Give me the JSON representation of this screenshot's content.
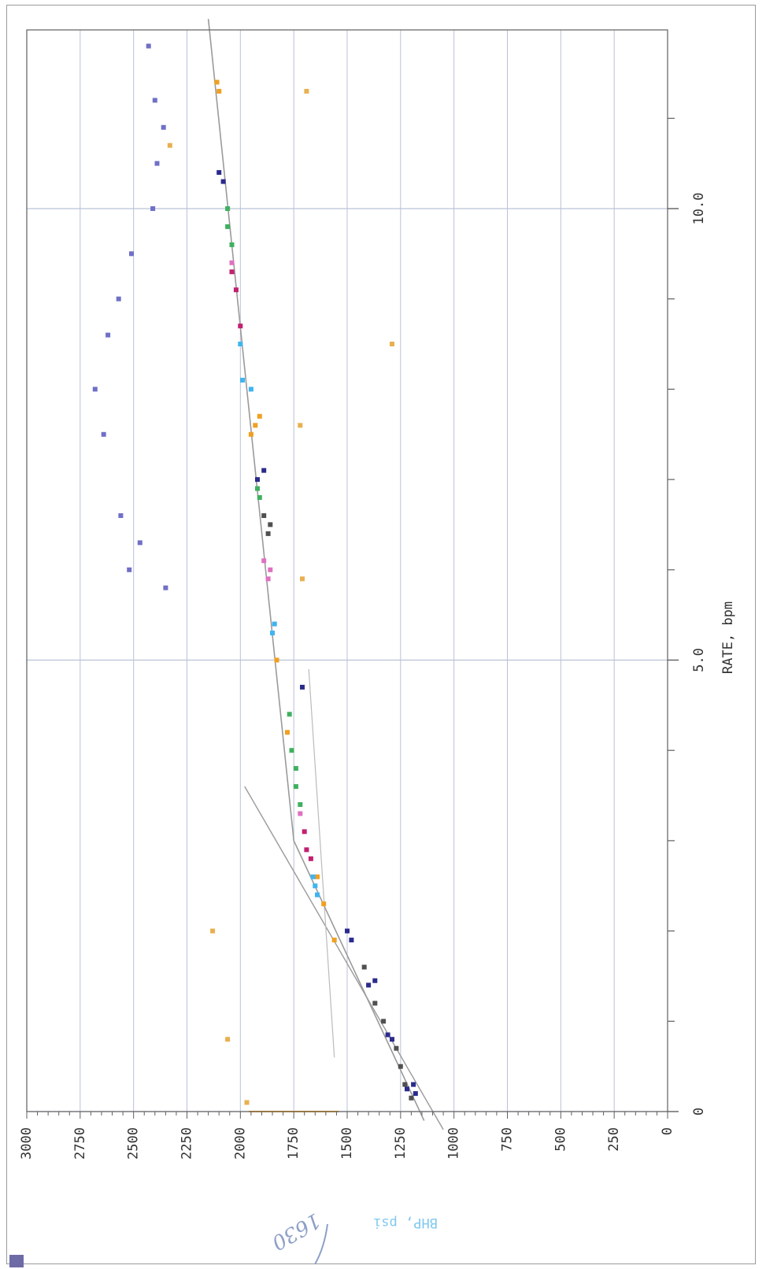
{
  "chart_data": {
    "type": "scatter",
    "orientation": "rotated-90-clockwise",
    "title": "",
    "xlabel": "RATE, bpm",
    "ylabel": "BHP, psi",
    "xlim": [
      0,
      12
    ],
    "ylim": [
      0,
      3000
    ],
    "grid": true,
    "x_tick_labels": [
      "0",
      "5.0",
      "10.0"
    ],
    "x_major_ticks": [
      0,
      5,
      10
    ],
    "x_minor_ticks": [
      1,
      2,
      3,
      4,
      6,
      7,
      8,
      9,
      11
    ],
    "y_tick_labels": [
      "0",
      "250",
      "500",
      "750",
      "1000",
      "1250",
      "1500",
      "1750",
      "2000",
      "2250",
      "2500",
      "2750",
      "3000"
    ],
    "y_ticks": [
      0,
      250,
      500,
      750,
      1000,
      1250,
      1500,
      1750,
      2000,
      2250,
      2500,
      2750,
      3000
    ],
    "handwritten_annotation": "1630",
    "colors": {
      "grid": "#b9c2d6",
      "axis": "#5f5f5f",
      "ylabel": "#7fc8ee",
      "annotation": "#8ea0c8",
      "baseline_segment": "#f0a020",
      "trend_line": "#9a9a9a",
      "reference_line": "#bbbbbb"
    },
    "baseline_segment": {
      "x": 0,
      "y_range": [
        1540,
        1960
      ]
    },
    "trend_line": [
      [
        -0.1,
        1140
      ],
      [
        3.0,
        1750
      ],
      [
        12.1,
        2150
      ]
    ],
    "steep_line": [
      [
        -0.2,
        1050
      ],
      [
        3.6,
        1980
      ]
    ],
    "reference_line": [
      [
        0.6,
        1560
      ],
      [
        4.9,
        1680
      ]
    ],
    "series": [
      {
        "name": "",
        "color": "#2b2b8c",
        "points": [
          [
            0.2,
            1180
          ],
          [
            0.25,
            1220
          ],
          [
            0.3,
            1190
          ],
          [
            0.8,
            1290
          ],
          [
            0.85,
            1310
          ],
          [
            1.4,
            1400
          ],
          [
            1.45,
            1370
          ],
          [
            1.9,
            1480
          ],
          [
            2.0,
            1500
          ],
          [
            4.7,
            1710
          ],
          [
            7.0,
            1920
          ],
          [
            7.1,
            1890
          ],
          [
            10.3,
            2080
          ],
          [
            10.4,
            2100
          ]
        ]
      },
      {
        "name": "",
        "color": "#505050",
        "points": [
          [
            0.15,
            1200
          ],
          [
            0.3,
            1230
          ],
          [
            0.5,
            1250
          ],
          [
            0.7,
            1270
          ],
          [
            1.0,
            1330
          ],
          [
            1.2,
            1370
          ],
          [
            1.6,
            1420
          ],
          [
            6.4,
            1870
          ],
          [
            6.5,
            1860
          ],
          [
            6.6,
            1890
          ]
        ]
      },
      {
        "name": "",
        "color": "#f0a020",
        "points": [
          [
            1.9,
            1560
          ],
          [
            2.3,
            1610
          ],
          [
            2.6,
            1640
          ],
          [
            4.2,
            1780
          ],
          [
            5.0,
            1830
          ],
          [
            7.5,
            1950
          ],
          [
            7.6,
            1930
          ],
          [
            7.7,
            1910
          ],
          [
            11.3,
            2100
          ],
          [
            11.4,
            2110
          ]
        ]
      },
      {
        "name": "",
        "color": "#40b4f0",
        "points": [
          [
            2.4,
            1640
          ],
          [
            2.5,
            1650
          ],
          [
            2.6,
            1660
          ],
          [
            5.3,
            1850
          ],
          [
            5.4,
            1840
          ],
          [
            8.0,
            1950
          ],
          [
            8.1,
            1990
          ],
          [
            8.5,
            2000
          ]
        ]
      },
      {
        "name": "",
        "color": "#c22070",
        "points": [
          [
            2.8,
            1670
          ],
          [
            2.9,
            1690
          ],
          [
            3.1,
            1700
          ],
          [
            8.7,
            2000
          ],
          [
            9.1,
            2020
          ],
          [
            9.3,
            2040
          ]
        ]
      },
      {
        "name": "",
        "color": "#e070c0",
        "points": [
          [
            3.3,
            1720
          ],
          [
            5.9,
            1870
          ],
          [
            6.0,
            1860
          ],
          [
            6.1,
            1890
          ],
          [
            9.4,
            2040
          ]
        ]
      },
      {
        "name": "",
        "color": "#40b060",
        "points": [
          [
            3.4,
            1720
          ],
          [
            3.6,
            1740
          ],
          [
            3.8,
            1740
          ],
          [
            4.0,
            1760
          ],
          [
            4.4,
            1770
          ],
          [
            6.8,
            1910
          ],
          [
            6.9,
            1920
          ],
          [
            9.6,
            2040
          ],
          [
            9.8,
            2060
          ],
          [
            10.0,
            2060
          ]
        ]
      },
      {
        "name": "",
        "color": "#7070c8",
        "points": [
          [
            5.8,
            2350
          ],
          [
            6.0,
            2520
          ],
          [
            6.3,
            2470
          ],
          [
            6.6,
            2560
          ],
          [
            7.5,
            2640
          ],
          [
            8.0,
            2680
          ],
          [
            8.6,
            2620
          ],
          [
            9.0,
            2570
          ],
          [
            9.5,
            2510
          ],
          [
            10.0,
            2410
          ],
          [
            10.5,
            2390
          ],
          [
            10.9,
            2360
          ],
          [
            11.2,
            2400
          ],
          [
            11.8,
            2430
          ]
        ]
      },
      {
        "name": "",
        "color": "#e8b050",
        "points": [
          [
            0.1,
            1970
          ],
          [
            0.8,
            2060
          ],
          [
            2.0,
            2130
          ],
          [
            5.9,
            1710
          ],
          [
            7.6,
            1720
          ],
          [
            8.5,
            1290
          ],
          [
            10.7,
            2330
          ],
          [
            11.3,
            1690
          ]
        ]
      }
    ]
  }
}
